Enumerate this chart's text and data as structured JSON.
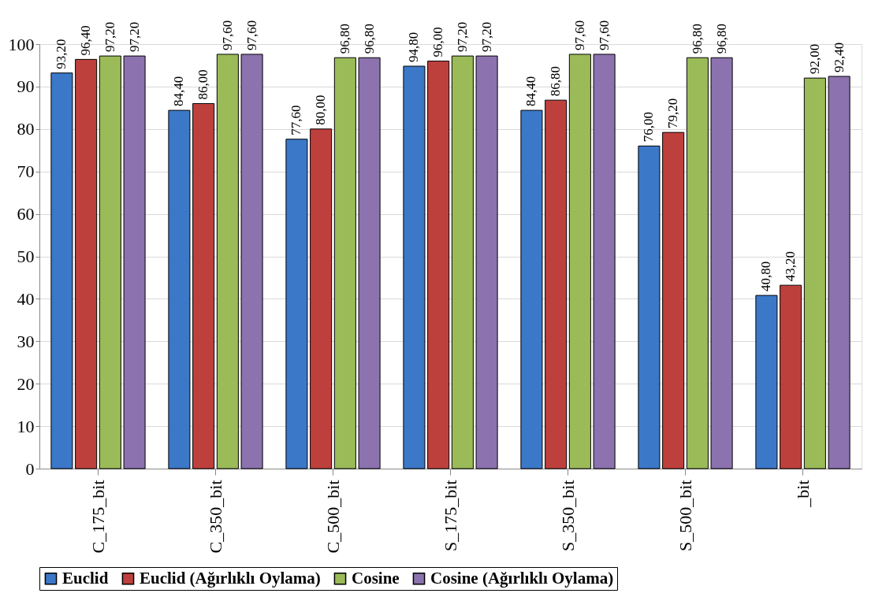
{
  "chart_data": {
    "type": "bar",
    "categories": [
      "C_175_bit",
      "C_350_bit",
      "C_500_bit",
      "S_175_bit",
      "S_350_bit",
      "S_500_bit",
      "_bit"
    ],
    "series": [
      {
        "name": "Euclid",
        "color": "#3c78c8",
        "values": [
          93.2,
          84.4,
          77.6,
          94.8,
          84.4,
          76.0,
          40.8
        ],
        "value_labels": [
          "93,20",
          "84,40",
          "77,60",
          "94,80",
          "84,40",
          "76,00",
          "40,80"
        ]
      },
      {
        "name": "Euclid (Ağırlıklı Oylama)",
        "color": "#be403c",
        "values": [
          96.4,
          86.0,
          80.0,
          96.0,
          86.8,
          79.2,
          43.2
        ],
        "value_labels": [
          "96,40",
          "86,00",
          "80,00",
          "96,00",
          "86,80",
          "79,20",
          "43,20"
        ]
      },
      {
        "name": "Cosine",
        "color": "#9bbb59",
        "values": [
          97.2,
          97.6,
          96.8,
          97.2,
          97.6,
          96.8,
          92.0
        ],
        "value_labels": [
          "97,20",
          "97,60",
          "96,80",
          "97,20",
          "97,60",
          "96,80",
          "92,00"
        ]
      },
      {
        "name": "Cosine (Ağırlıklı Oylama)",
        "color": "#8c72ae",
        "values": [
          97.2,
          97.6,
          96.8,
          97.2,
          97.6,
          96.8,
          92.4
        ],
        "value_labels": [
          "97,20",
          "97,60",
          "96,80",
          "97,20",
          "97,60",
          "96,80",
          "92,40"
        ]
      }
    ],
    "ylim": [
      0,
      100
    ],
    "yticks": [
      0,
      10,
      20,
      30,
      40,
      50,
      60,
      70,
      80,
      90,
      100
    ],
    "grid": "y",
    "legend": "bottom"
  }
}
